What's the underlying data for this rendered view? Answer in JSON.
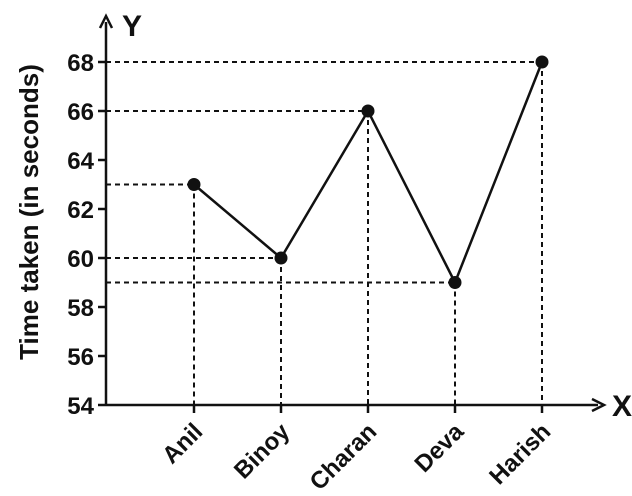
{
  "chart_data": {
    "type": "line",
    "title": "",
    "xlabel": "X",
    "ylabel": "Time taken (in seconds)",
    "y_axis_letter": "Y",
    "categories": [
      "Anil",
      "Binoy",
      "Charan",
      "Deva",
      "Harish"
    ],
    "values": [
      63,
      60,
      66,
      59,
      68
    ],
    "ylim": [
      54,
      68
    ],
    "yticks": [
      54,
      56,
      58,
      60,
      62,
      64,
      66,
      68
    ],
    "grid": false,
    "guide_lines": "dashed",
    "line_color": "#111111",
    "marker_color": "#111111"
  }
}
